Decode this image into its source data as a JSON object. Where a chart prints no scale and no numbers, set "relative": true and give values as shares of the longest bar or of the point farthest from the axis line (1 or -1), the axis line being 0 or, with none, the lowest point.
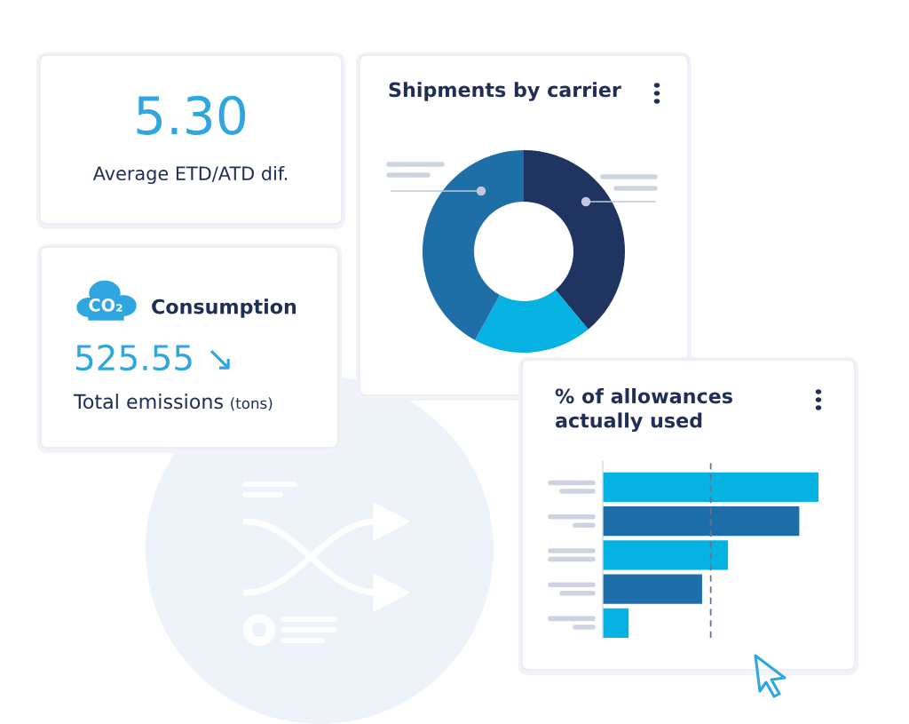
{
  "chart_data": [
    {
      "type": "other",
      "annotations": [
        "5.30",
        "Average ETD/ATD dif."
      ]
    },
    {
      "type": "other",
      "title": "Consumption",
      "annotations": [
        "CO₂",
        "525.55 ↘",
        "Total emissions",
        "(tons)"
      ]
    },
    {
      "type": "donut",
      "title": "Shipments by carrier",
      "categories": [
        null,
        null,
        null
      ],
      "values": [
        39,
        19,
        42
      ],
      "colors": [
        "#1f3461",
        "#05b2e2",
        "#1e6ea8"
      ]
    },
    {
      "type": "bar",
      "orientation": "horizontal",
      "relative": true,
      "title": "% of allowances\nactually used",
      "categories": [
        null,
        null,
        null,
        null,
        null
      ],
      "values": [
        1,
        0.91,
        0.58,
        0.46,
        0.12
      ],
      "colors": [
        "#05b2e2",
        "#1d6ea8",
        "#05b2e2",
        "#1d6ea8",
        "#05b2e2"
      ],
      "ref_lines": [
        {
          "axis": "x",
          "value": 0.5,
          "color": "#6b7290",
          "line_style": "dashed"
        }
      ]
    }
  ]
}
